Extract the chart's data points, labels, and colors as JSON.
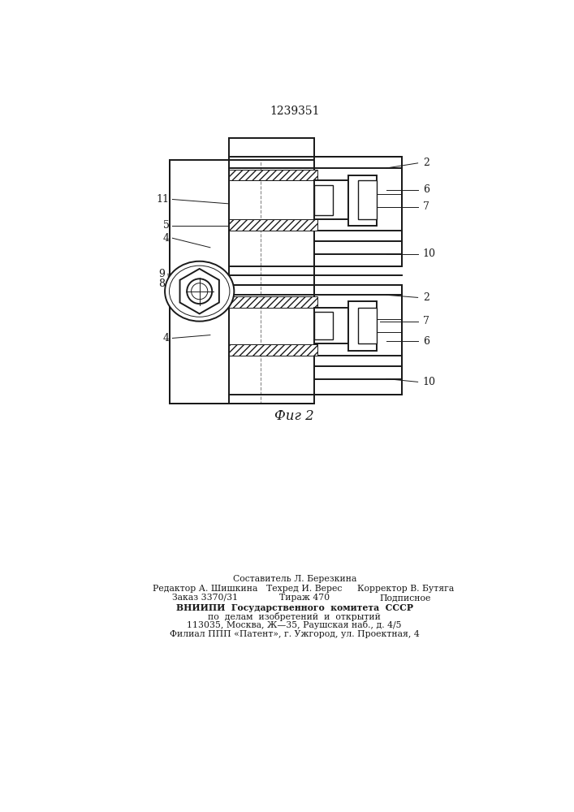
{
  "title_number": "1239351",
  "fig_label": "Фиг 2",
  "background_color": "#ffffff",
  "line_color": "#1a1a1a",
  "anno_fs": 9,
  "footer": {
    "line0": "Составитель Л. Березкина",
    "line1_left": "Редактор А. Шишкина",
    "line1_mid": "Техред И. Верес",
    "line1_right": "Корректор В. Бутяга",
    "line2_left": "Заказ 3370/31",
    "line2_mid": "Тираж 470",
    "line2_right": "Подписное",
    "line3": "ВНИИПИ  Государственного  комитета  СССР",
    "line4": "по  делам  изобретений  и  открытий",
    "line5": "113035, Москва, Ж—35, Раушская наб., д. 4/5",
    "line6": "Филиал ППП «Патент», г. Ужгород, ул. Проектная, 4"
  }
}
